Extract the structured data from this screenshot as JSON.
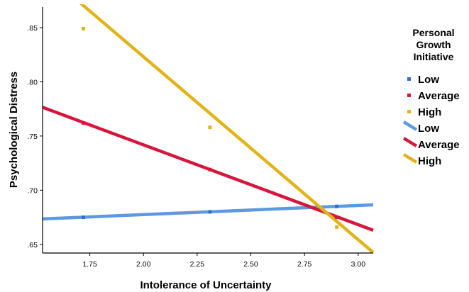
{
  "chart_data": {
    "type": "line",
    "xlabel": "Intolerance of Uncertainty",
    "ylabel": "Psychological Distress",
    "xlim": [
      1.53,
      3.07
    ],
    "ylim": [
      0.642,
      0.869
    ],
    "xticks": [
      1.75,
      2.0,
      2.25,
      2.5,
      2.75,
      3.0
    ],
    "xtick_labels": [
      "1.75",
      "2.00",
      "2.25",
      "2.50",
      "2.75",
      "3.00"
    ],
    "yticks": [
      0.65,
      0.7,
      0.75,
      0.8,
      0.85
    ],
    "ytick_labels": [
      ".65",
      ".70",
      ".75",
      ".80",
      ".85"
    ],
    "legend": {
      "title_lines": [
        "Personal",
        "Growth",
        "Initiative"
      ],
      "placement": "right"
    },
    "point_series": [
      {
        "name": "Low",
        "color": "#2e6fd6",
        "x": [
          1.72,
          2.31,
          2.9
        ],
        "y": [
          0.675,
          0.68,
          0.685
        ]
      },
      {
        "name": "Average",
        "color": "#d6163c",
        "x": [
          1.72,
          2.31,
          2.9
        ],
        "y": [
          0.762,
          0.719,
          0.675
        ]
      },
      {
        "name": "High",
        "color": "#e0b419",
        "x": [
          1.72,
          2.31,
          2.9
        ],
        "y": [
          0.849,
          0.758,
          0.666
        ]
      }
    ],
    "line_series": [
      {
        "name": "Low",
        "color": "#5b9ae0",
        "x": [
          1.53,
          3.07
        ],
        "y": [
          0.6735,
          0.6865
        ]
      },
      {
        "name": "Average",
        "color": "#d6163c",
        "x": [
          1.53,
          3.07
        ],
        "y": [
          0.7765,
          0.663
        ]
      },
      {
        "name": "High",
        "color": "#e0b419",
        "x": [
          1.53,
          3.07
        ],
        "y": [
          0.9025,
          0.6425
        ]
      }
    ]
  }
}
